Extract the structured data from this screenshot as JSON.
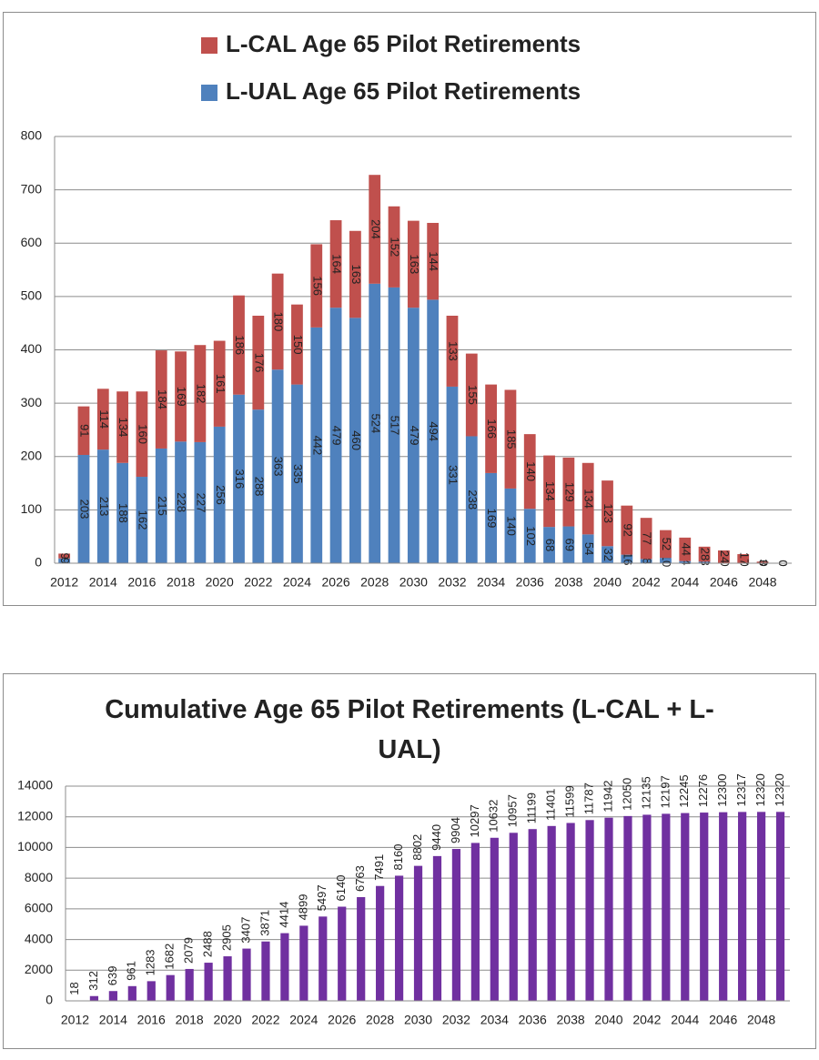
{
  "chart_data": [
    {
      "type": "stacked-bar",
      "categories": [
        "2012",
        null,
        "2014",
        null,
        "2016",
        null,
        "2018",
        null,
        "2020",
        null,
        "2022",
        null,
        "2024",
        null,
        "2026",
        null,
        "2028",
        null,
        "2030",
        null,
        "2032",
        null,
        "2034",
        null,
        "2036",
        null,
        "2038",
        null,
        "2040",
        null,
        "2042",
        null,
        "2044",
        null,
        "2046",
        null,
        "2048",
        null
      ],
      "series": [
        {
          "name": "L-UAL Age 65 Pilot Retirements",
          "color": "#4f81bd",
          "values": [
            9,
            203,
            213,
            188,
            162,
            215,
            228,
            227,
            256,
            316,
            288,
            363,
            335,
            442,
            479,
            460,
            524,
            517,
            479,
            494,
            331,
            238,
            169,
            140,
            102,
            68,
            69,
            54,
            32,
            16,
            8,
            10,
            4,
            3,
            0,
            0,
            0,
            0
          ]
        },
        {
          "name": "L-CAL Age 65 Pilot Retirements",
          "color": "#c0504d",
          "values": [
            9,
            91,
            114,
            134,
            160,
            184,
            169,
            182,
            161,
            186,
            176,
            180,
            150,
            156,
            164,
            163,
            204,
            152,
            163,
            144,
            133,
            155,
            166,
            185,
            140,
            134,
            129,
            134,
            123,
            92,
            77,
            52,
            44,
            28,
            24,
            17,
            3,
            0
          ]
        }
      ],
      "ylim": [
        0,
        800
      ],
      "yticks": [
        0,
        100,
        200,
        300,
        400,
        500,
        600,
        700,
        800
      ],
      "grid": true,
      "legend": "top"
    },
    {
      "type": "bar",
      "title": "Cumulative Age 65 Pilot Retirements (L-CAL + L-UAL)",
      "categories": [
        "2012",
        null,
        "2014",
        null,
        "2016",
        null,
        "2018",
        null,
        "2020",
        null,
        "2022",
        null,
        "2024",
        null,
        "2026",
        null,
        "2028",
        null,
        "2030",
        null,
        "2032",
        null,
        "2034",
        null,
        "2036",
        null,
        "2038",
        null,
        "2040",
        null,
        "2042",
        null,
        "2044",
        null,
        "2046",
        null,
        "2048",
        null
      ],
      "values": [
        18,
        312,
        639,
        961,
        1283,
        1682,
        2079,
        2488,
        2905,
        3407,
        3871,
        4414,
        4899,
        5497,
        6140,
        6763,
        7491,
        8160,
        8802,
        9440,
        9904,
        10297,
        10632,
        10957,
        11199,
        11401,
        11599,
        11787,
        11942,
        12050,
        12135,
        12197,
        12245,
        12276,
        12300,
        12317,
        12320,
        12320
      ],
      "color": "#7030a0",
      "ylim": [
        0,
        14000
      ],
      "yticks": [
        0,
        2000,
        4000,
        6000,
        8000,
        10000,
        12000,
        14000
      ],
      "grid": true
    }
  ]
}
